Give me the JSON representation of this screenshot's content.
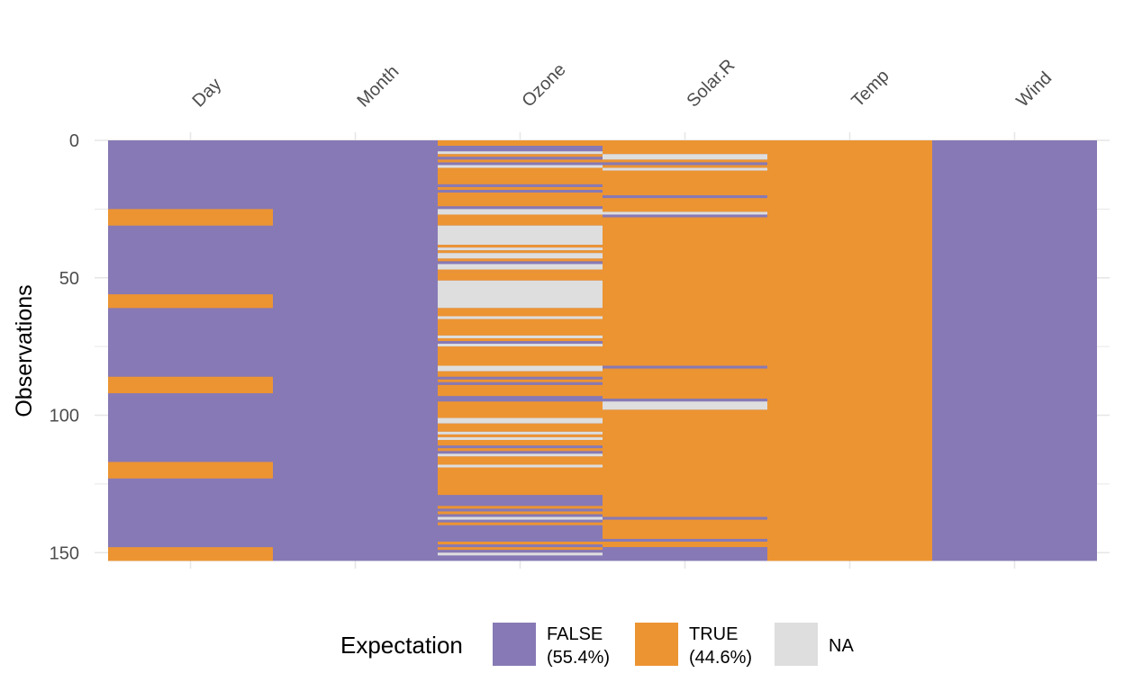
{
  "chart_data": {
    "type": "heatmap",
    "n_obs": 153,
    "columns": [
      "Day",
      "Month",
      "Ozone",
      "Solar.R",
      "Temp",
      "Wind"
    ],
    "ylabel": "Observations",
    "y_ticks": [
      0,
      50,
      100,
      150
    ],
    "y_tick_labels": [
      "0",
      "50",
      "100",
      "150"
    ],
    "grid": true,
    "default_state": "FALSE",
    "x_axis_position": "top",
    "column_runs": {
      "Day": [
        {
          "from": 25,
          "to": 31,
          "state": "TRUE"
        },
        {
          "from": 56,
          "to": 61,
          "state": "TRUE"
        },
        {
          "from": 86,
          "to": 92,
          "state": "TRUE"
        },
        {
          "from": 117,
          "to": 123,
          "state": "TRUE"
        },
        {
          "from": 148,
          "to": 153,
          "state": "TRUE"
        }
      ],
      "Month": [],
      "Ozone": [
        {
          "from": 0,
          "to": 2,
          "state": "TRUE"
        },
        {
          "from": 2,
          "to": 4,
          "state": "FALSE"
        },
        {
          "from": 4,
          "to": 5,
          "state": "NA"
        },
        {
          "from": 5,
          "to": 6,
          "state": "TRUE"
        },
        {
          "from": 6,
          "to": 7,
          "state": "FALSE"
        },
        {
          "from": 7,
          "to": 8,
          "state": "TRUE"
        },
        {
          "from": 9,
          "to": 10,
          "state": "NA"
        },
        {
          "from": 10,
          "to": 16,
          "state": "TRUE"
        },
        {
          "from": 16,
          "to": 17,
          "state": "FALSE"
        },
        {
          "from": 17,
          "to": 18,
          "state": "TRUE"
        },
        {
          "from": 19,
          "to": 24,
          "state": "TRUE"
        },
        {
          "from": 24,
          "to": 25,
          "state": "FALSE"
        },
        {
          "from": 25,
          "to": 27,
          "state": "NA"
        },
        {
          "from": 27,
          "to": 31,
          "state": "TRUE"
        },
        {
          "from": 31,
          "to": 38,
          "state": "NA"
        },
        {
          "from": 38,
          "to": 39,
          "state": "TRUE"
        },
        {
          "from": 39,
          "to": 40,
          "state": "NA"
        },
        {
          "from": 40,
          "to": 41,
          "state": "TRUE"
        },
        {
          "from": 41,
          "to": 43,
          "state": "NA"
        },
        {
          "from": 43,
          "to": 44,
          "state": "TRUE"
        },
        {
          "from": 44,
          "to": 45,
          "state": "FALSE"
        },
        {
          "from": 45,
          "to": 47,
          "state": "NA"
        },
        {
          "from": 47,
          "to": 48,
          "state": "TRUE"
        },
        {
          "from": 48,
          "to": 51,
          "state": "TRUE"
        },
        {
          "from": 51,
          "to": 61,
          "state": "NA"
        },
        {
          "from": 61,
          "to": 64,
          "state": "TRUE"
        },
        {
          "from": 64,
          "to": 65,
          "state": "NA"
        },
        {
          "from": 65,
          "to": 71,
          "state": "TRUE"
        },
        {
          "from": 71,
          "to": 72,
          "state": "NA"
        },
        {
          "from": 72,
          "to": 73,
          "state": "TRUE"
        },
        {
          "from": 74,
          "to": 75,
          "state": "NA"
        },
        {
          "from": 75,
          "to": 82,
          "state": "TRUE"
        },
        {
          "from": 82,
          "to": 84,
          "state": "NA"
        },
        {
          "from": 84,
          "to": 86,
          "state": "TRUE"
        },
        {
          "from": 87,
          "to": 88,
          "state": "TRUE"
        },
        {
          "from": 88,
          "to": 89,
          "state": "FALSE"
        },
        {
          "from": 89,
          "to": 93,
          "state": "TRUE"
        },
        {
          "from": 95,
          "to": 101,
          "state": "TRUE"
        },
        {
          "from": 101,
          "to": 103,
          "state": "NA"
        },
        {
          "from": 103,
          "to": 106,
          "state": "TRUE"
        },
        {
          "from": 106,
          "to": 107,
          "state": "NA"
        },
        {
          "from": 107,
          "to": 108,
          "state": "TRUE"
        },
        {
          "from": 108,
          "to": 109,
          "state": "NA"
        },
        {
          "from": 109,
          "to": 111,
          "state": "TRUE"
        },
        {
          "from": 112,
          "to": 113,
          "state": "TRUE"
        },
        {
          "from": 114,
          "to": 115,
          "state": "NA"
        },
        {
          "from": 115,
          "to": 118,
          "state": "TRUE"
        },
        {
          "from": 118,
          "to": 119,
          "state": "NA"
        },
        {
          "from": 119,
          "to": 129,
          "state": "TRUE"
        },
        {
          "from": 133,
          "to": 134,
          "state": "TRUE"
        },
        {
          "from": 135,
          "to": 136,
          "state": "TRUE"
        },
        {
          "from": 137,
          "to": 138,
          "state": "NA"
        },
        {
          "from": 139,
          "to": 140,
          "state": "TRUE"
        },
        {
          "from": 146,
          "to": 147,
          "state": "TRUE"
        },
        {
          "from": 148,
          "to": 149,
          "state": "TRUE"
        },
        {
          "from": 149,
          "to": 150,
          "state": "FALSE"
        },
        {
          "from": 150,
          "to": 151,
          "state": "NA"
        }
      ],
      "Solar.R": [
        {
          "from": 0,
          "to": 5,
          "state": "TRUE"
        },
        {
          "from": 5,
          "to": 7,
          "state": "NA"
        },
        {
          "from": 7,
          "to": 8,
          "state": "TRUE"
        },
        {
          "from": 8,
          "to": 9,
          "state": "FALSE"
        },
        {
          "from": 9,
          "to": 10,
          "state": "TRUE"
        },
        {
          "from": 10,
          "to": 11,
          "state": "NA"
        },
        {
          "from": 11,
          "to": 20,
          "state": "TRUE"
        },
        {
          "from": 20,
          "to": 21,
          "state": "FALSE"
        },
        {
          "from": 21,
          "to": 26,
          "state": "TRUE"
        },
        {
          "from": 26,
          "to": 27,
          "state": "NA"
        },
        {
          "from": 27,
          "to": 28,
          "state": "FALSE"
        },
        {
          "from": 28,
          "to": 82,
          "state": "TRUE"
        },
        {
          "from": 82,
          "to": 83,
          "state": "FALSE"
        },
        {
          "from": 83,
          "to": 94,
          "state": "TRUE"
        },
        {
          "from": 94,
          "to": 95,
          "state": "FALSE"
        },
        {
          "from": 95,
          "to": 98,
          "state": "NA"
        },
        {
          "from": 98,
          "to": 137,
          "state": "TRUE"
        },
        {
          "from": 137,
          "to": 138,
          "state": "FALSE"
        },
        {
          "from": 138,
          "to": 145,
          "state": "TRUE"
        },
        {
          "from": 145,
          "to": 146,
          "state": "FALSE"
        },
        {
          "from": 146,
          "to": 148,
          "state": "TRUE"
        },
        {
          "from": 148,
          "to": 149,
          "state": "FALSE"
        }
      ],
      "Temp": [
        {
          "from": 0,
          "to": 153,
          "state": "TRUE"
        }
      ],
      "Wind": []
    },
    "legend": {
      "title": "Expectation",
      "position": "bottom",
      "entries": [
        {
          "state": "FALSE",
          "line1": "FALSE",
          "line2": "(55.4%)",
          "color": "#8779b5"
        },
        {
          "state": "TRUE",
          "line1": "TRUE",
          "line2": "(44.6%)",
          "color": "#ec9432"
        },
        {
          "state": "NA",
          "line1": "NA",
          "line2": "",
          "color": "#dedede"
        }
      ]
    },
    "colors": {
      "FALSE": "#8779b5",
      "TRUE": "#ec9432",
      "NA": "#dedede",
      "grid": "#e6e6e6"
    }
  }
}
